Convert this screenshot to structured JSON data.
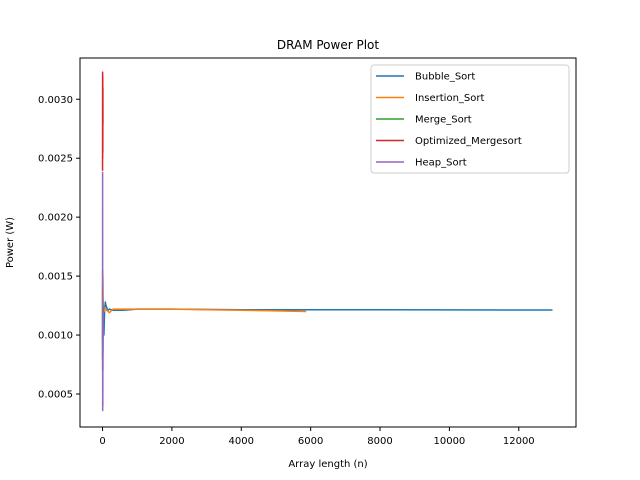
{
  "chart_data": {
    "type": "line",
    "title": "DRAM Power Plot",
    "xlabel": "Array length (n)",
    "ylabel": "Power (W)",
    "xlim": [
      -650,
      13650
    ],
    "ylim": [
      0.00022,
      0.00335
    ],
    "xticks": [
      0,
      2000,
      4000,
      6000,
      8000,
      10000,
      12000
    ],
    "xtick_labels": [
      "0",
      "2000",
      "4000",
      "6000",
      "8000",
      "10000",
      "12000"
    ],
    "yticks": [
      0.0005,
      0.001,
      0.0015,
      0.002,
      0.0025,
      0.003
    ],
    "ytick_labels": [
      "0.0005",
      "0.0010",
      "0.0015",
      "0.0020",
      "0.0025",
      "0.0030"
    ],
    "grid": false,
    "legend_position": "top-right",
    "series": [
      {
        "name": "Bubble_Sort",
        "color": "#1f77b4",
        "x": [
          0,
          10,
          20,
          40,
          60,
          80,
          100,
          150,
          200,
          300,
          400,
          600,
          1000,
          2000,
          4000,
          6000,
          8000,
          10000,
          12000,
          12950
        ],
        "y": [
          0.001,
          0.00085,
          0.00112,
          0.001,
          0.00122,
          0.00128,
          0.00125,
          0.00121,
          0.00122,
          0.00121,
          0.00121,
          0.00121,
          0.00122,
          0.00122,
          0.001215,
          0.001215,
          0.001215,
          0.001213,
          0.001212,
          0.001212
        ]
      },
      {
        "name": "Insertion_Sort",
        "color": "#ff7f0e",
        "x": [
          0,
          5,
          10,
          20,
          30,
          50,
          80,
          120,
          200,
          300,
          500,
          1000,
          2000,
          3000,
          4000,
          5000,
          5850
        ],
        "y": [
          0.0014,
          0.0009,
          0.0015,
          0.00118,
          0.00125,
          0.0012,
          0.00122,
          0.00121,
          0.00119,
          0.00122,
          0.00122,
          0.00122,
          0.00122,
          0.001215,
          0.00121,
          0.001205,
          0.0012
        ]
      },
      {
        "name": "Merge_Sort",
        "color": "#2ca02c",
        "x": [
          0,
          3,
          6,
          10,
          15,
          20,
          25
        ],
        "y": [
          0.0008,
          0.00155,
          0.00105,
          0.0013,
          0.00115,
          0.00125,
          0.0012
        ]
      },
      {
        "name": "Optimized_Mergesort",
        "color": "#d62728",
        "x": [
          0,
          2,
          4,
          6,
          8,
          10,
          12
        ],
        "y": [
          0.0024,
          0.00323,
          0.0025,
          0.0032,
          0.00255,
          0.0031,
          0.0028
        ]
      },
      {
        "name": "Heap_Sort",
        "color": "#9467bd",
        "x": [
          0,
          2,
          4,
          6,
          8,
          10,
          12,
          15,
          20
        ],
        "y": [
          0.0007,
          0.00238,
          0.00036,
          0.0015,
          0.0004,
          0.0012,
          0.0007,
          0.0011,
          0.001
        ]
      }
    ]
  }
}
